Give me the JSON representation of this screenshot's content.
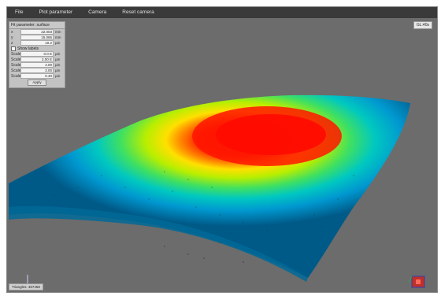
{
  "menu": {
    "file": "File",
    "plot_parameter": "Plot parameter",
    "camera": "Camera",
    "reset_camera": "Reset camera"
  },
  "panel": {
    "title": "Fit parameter: surface",
    "rows": [
      {
        "label": "x",
        "value": "22.003",
        "unit": "mm"
      },
      {
        "label": "y",
        "value": "15.065",
        "unit": "mm"
      },
      {
        "label": "z",
        "value": "10.2",
        "unit": "µm"
      }
    ],
    "show_labels": "Show labels",
    "scale_rows": [
      {
        "label": "Scale",
        "value": "0.0 E",
        "unit": "µm"
      },
      {
        "label": "Scale",
        "value": "2.00 E",
        "unit": "µm"
      },
      {
        "label": "Scale",
        "value": "4.00",
        "unit": "µm"
      },
      {
        "label": "Scale",
        "value": "2.00",
        "unit": "µm"
      },
      {
        "label": "Scale",
        "value": "0.40",
        "unit": "µm"
      }
    ],
    "apply": "Apply"
  },
  "badge": "GL:40s",
  "status": "Triangles: 487458",
  "colors": {
    "background": "#6c6c6c",
    "menubar": "#3a3a3a",
    "peak": "#ff1a00",
    "high": "#ffd800",
    "mid": "#7ee000",
    "low": "#00b8d8",
    "base": "#0070a0"
  }
}
